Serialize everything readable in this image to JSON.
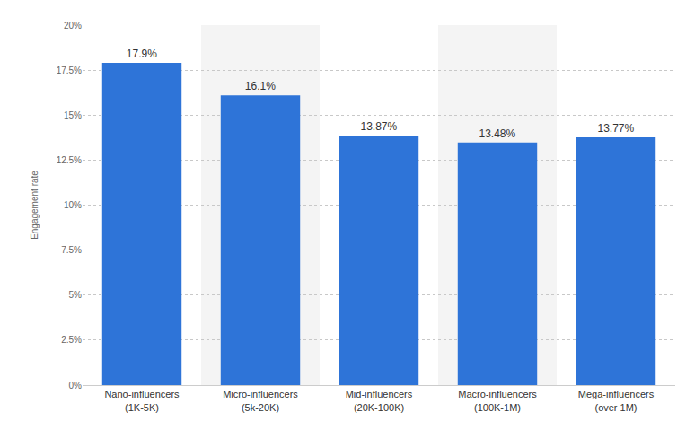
{
  "chart_data": {
    "type": "bar",
    "y_label": "Engagement rate",
    "categories": [
      "Nano-influencers\n(1K-5K)",
      "Micro-influencers\n(5k-20K)",
      "Mid-influencers\n(20K-100K)",
      "Macro-influencers\n(100K-1M)",
      "Mega-influencers\n(over 1M)"
    ],
    "values": [
      17.9,
      16.1,
      13.87,
      13.48,
      13.77
    ],
    "value_labels": [
      "17.9%",
      "16.1%",
      "13.87%",
      "13.48%",
      "13.77%"
    ],
    "data_labels": true,
    "color": "#2e74d8",
    "ylim": [
      0,
      20
    ],
    "yticks": [
      {
        "value": 0,
        "label": "0%"
      },
      {
        "value": 2.5,
        "label": "2.5%"
      },
      {
        "value": 5,
        "label": "5%"
      },
      {
        "value": 7.5,
        "label": "7.5%"
      },
      {
        "value": 10,
        "label": "10%"
      },
      {
        "value": 12.5,
        "label": "12.5%"
      },
      {
        "value": 15,
        "label": "15%"
      },
      {
        "value": 17.5,
        "label": "17.5%"
      },
      {
        "value": 20,
        "label": "20%"
      }
    ],
    "grid": true
  }
}
